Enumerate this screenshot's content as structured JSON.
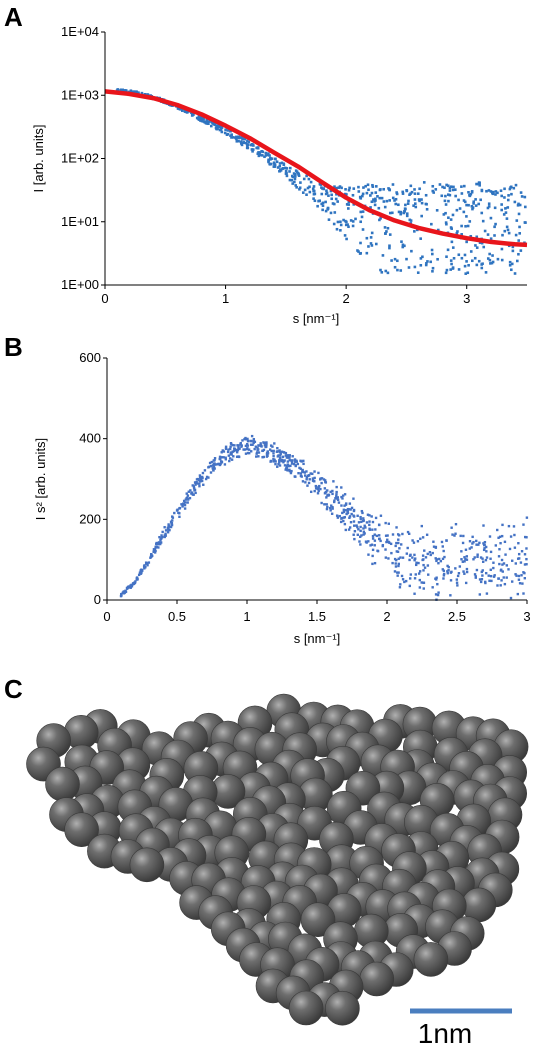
{
  "panels": {
    "a": "A",
    "b": "B",
    "c": "C"
  },
  "scale_bar": {
    "label": "1nm",
    "color": "#4a7ebf"
  },
  "bead_model": {
    "bead_color": "#5b5b5b"
  },
  "chart_data": [
    {
      "id": "A",
      "type": "scatter",
      "title": "",
      "xlabel": "s [nm⁻¹]",
      "ylabel": "I [arb. units]",
      "xlim": [
        0,
        3.5
      ],
      "ylim": [
        1,
        10000
      ],
      "yscale": "log",
      "xticks": [
        0,
        1,
        2,
        3
      ],
      "xtick_labels": [
        "0",
        "1",
        "2",
        "3"
      ],
      "yticks": [
        1,
        10,
        100,
        1000,
        10000
      ],
      "ytick_labels": [
        "1E+00",
        "1E+01",
        "1E+02",
        "1E+03",
        "1E+04"
      ],
      "grid": false,
      "legend": "none",
      "series": [
        {
          "kind": "points",
          "color": "#2f74c0",
          "x": [
            0.1,
            0.2,
            0.3,
            0.4,
            0.5,
            0.6,
            0.7,
            0.8,
            0.9,
            1.0,
            1.1,
            1.2,
            1.3,
            1.4,
            1.5,
            1.6,
            1.7,
            1.8,
            1.9,
            2.0,
            2.1,
            2.2,
            2.3,
            2.4,
            2.5,
            2.6,
            2.7,
            2.8,
            2.9,
            3.0,
            3.1,
            3.2,
            3.3,
            3.4
          ],
          "y": [
            1150,
            1100,
            1000,
            900,
            780,
            650,
            520,
            420,
            340,
            270,
            210,
            160,
            120,
            90,
            65,
            48,
            35,
            27,
            20,
            16,
            14,
            13,
            13,
            14,
            12,
            13,
            14,
            12,
            13,
            12,
            14,
            13,
            12,
            14
          ],
          "scatter_low": [
            1150,
            1080,
            980,
            870,
            750,
            620,
            490,
            390,
            310,
            240,
            180,
            135,
            98,
            70,
            48,
            33,
            22,
            14,
            8,
            5,
            3,
            2,
            1.5,
            1.5,
            1.5,
            1.5,
            1.5,
            1.5,
            1.5,
            1.5,
            1.5,
            1.5,
            1.5,
            1.5
          ],
          "scatter_high": [
            1250,
            1200,
            1100,
            980,
            850,
            710,
            570,
            460,
            370,
            300,
            235,
            180,
            138,
            105,
            80,
            62,
            50,
            42,
            38,
            35,
            36,
            40,
            38,
            42,
            36,
            40,
            45,
            38,
            40,
            36,
            42,
            38,
            36,
            40
          ]
        },
        {
          "kind": "fit-line",
          "color": "#e8151b",
          "x": [
            0.0,
            0.2,
            0.4,
            0.6,
            0.8,
            1.0,
            1.2,
            1.4,
            1.6,
            1.8,
            2.0,
            2.2,
            2.4,
            2.6,
            2.8,
            3.0,
            3.2,
            3.4,
            3.5
          ],
          "y": [
            1150,
            1050,
            900,
            700,
            500,
            330,
            210,
            125,
            75,
            42,
            24,
            15,
            10.5,
            8,
            6.5,
            5.5,
            4.8,
            4.4,
            4.3
          ]
        }
      ]
    },
    {
      "id": "B",
      "type": "scatter",
      "title": "",
      "xlabel": "s [nm⁻¹]",
      "ylabel": "I s² [arb. units]",
      "xlim": [
        0,
        3
      ],
      "ylim": [
        0,
        600
      ],
      "xticks": [
        0,
        0.5,
        1,
        1.5,
        2,
        2.5,
        3
      ],
      "xtick_labels": [
        "0",
        "0.5",
        "1",
        "1.5",
        "2",
        "2.5",
        "3"
      ],
      "yticks": [
        0,
        200,
        400,
        600
      ],
      "ytick_labels": [
        "0",
        "200",
        "400",
        "600"
      ],
      "grid": false,
      "legend": "none",
      "series": [
        {
          "kind": "points",
          "color": "#4472c4",
          "x": [
            0.1,
            0.2,
            0.3,
            0.4,
            0.5,
            0.6,
            0.7,
            0.8,
            0.9,
            1.0,
            1.1,
            1.2,
            1.3,
            1.4,
            1.5,
            1.6,
            1.7,
            1.8,
            1.9,
            2.0,
            2.1,
            2.2,
            2.3,
            2.4,
            2.5,
            2.6,
            2.7,
            2.8,
            2.9,
            3.0
          ],
          "y": [
            12,
            45,
            100,
            160,
            215,
            265,
            310,
            345,
            370,
            385,
            380,
            360,
            340,
            315,
            285,
            255,
            225,
            190,
            155,
            130,
            110,
            95,
            90,
            100,
            110,
            100,
            90,
            95,
            100,
            110
          ],
          "scatter": [
            4,
            6,
            10,
            14,
            18,
            20,
            22,
            24,
            26,
            28,
            30,
            32,
            35,
            38,
            42,
            48,
            55,
            60,
            70,
            80,
            90,
            95,
            100,
            100,
            100,
            100,
            100,
            100,
            100,
            110
          ]
        }
      ]
    }
  ]
}
